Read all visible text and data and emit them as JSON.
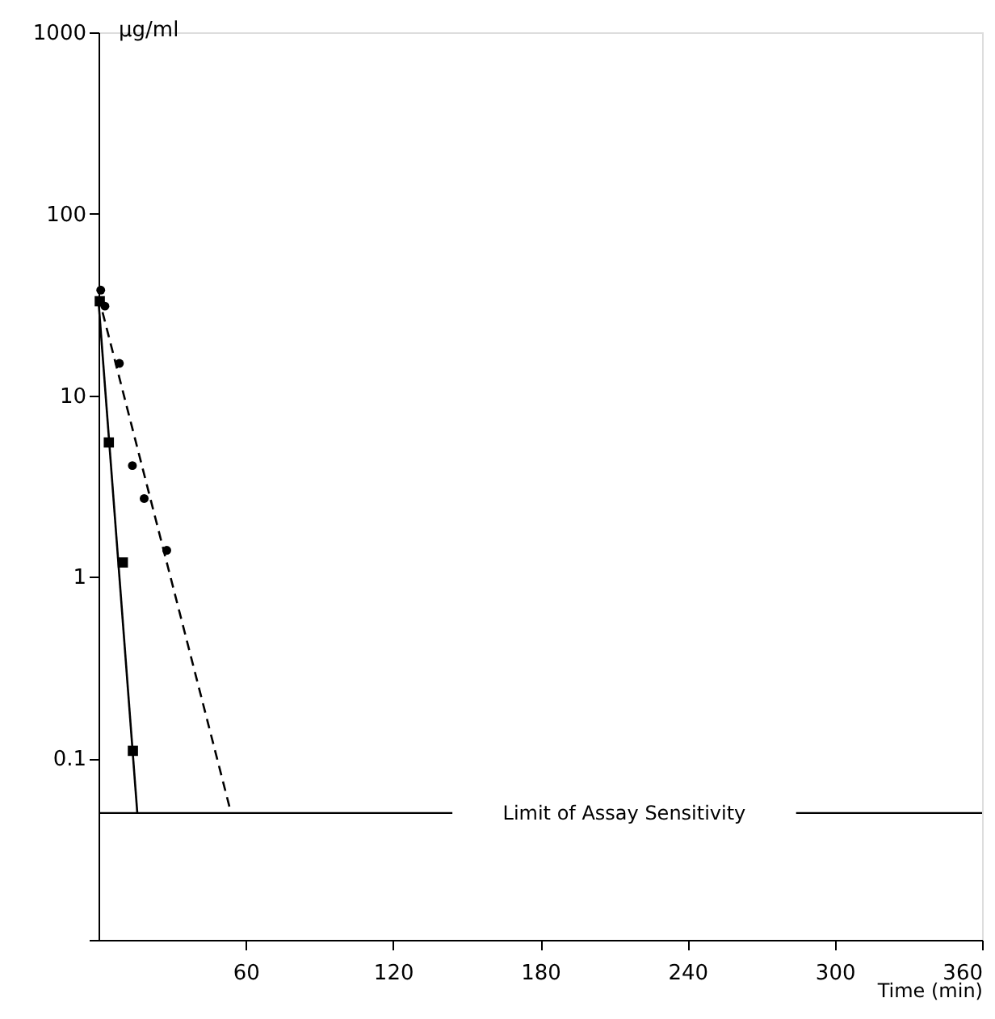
{
  "chart_data": {
    "type": "scatter",
    "xlabel": "Time (min)",
    "ylabel": "µg/ml",
    "xlim": [
      0,
      360
    ],
    "xticks": [
      60,
      120,
      180,
      240,
      300,
      360
    ],
    "ylim": [
      0.01,
      1000
    ],
    "yticks": [
      {
        "value": 0.01,
        "label": null
      },
      0.1,
      1,
      10,
      100,
      1000
    ],
    "log": "y",
    "grid": false,
    "series": [
      {
        "type": "scatter",
        "marker": "circle",
        "color": "#000000",
        "x": [
          0.9,
          2.6,
          8.5,
          13.8,
          18.6,
          27.8
        ],
        "values": [
          38,
          31,
          15,
          4.1,
          2.7,
          1.4
        ]
      },
      {
        "type": "scatter",
        "marker": "square",
        "color": "#000000",
        "x": [
          0.5,
          4.2,
          9.9,
          14
        ],
        "values": [
          33,
          5.5,
          1.2,
          0.11
        ]
      },
      {
        "type": "line",
        "line_style": "dashed",
        "marker": "none",
        "color": "#000000",
        "x": [
          0,
          54
        ],
        "values": [
          35,
          0.05
        ]
      },
      {
        "type": "line",
        "line_style": "solid",
        "marker": "none",
        "color": "#000000",
        "x": [
          0,
          15.8
        ],
        "values": [
          33,
          0.05
        ]
      }
    ],
    "ref_lines": [
      {
        "axis": "y",
        "value": 0.05,
        "label": "Limit of Assay Sensitivity",
        "color": "#000000",
        "line_style": "solid"
      }
    ]
  }
}
